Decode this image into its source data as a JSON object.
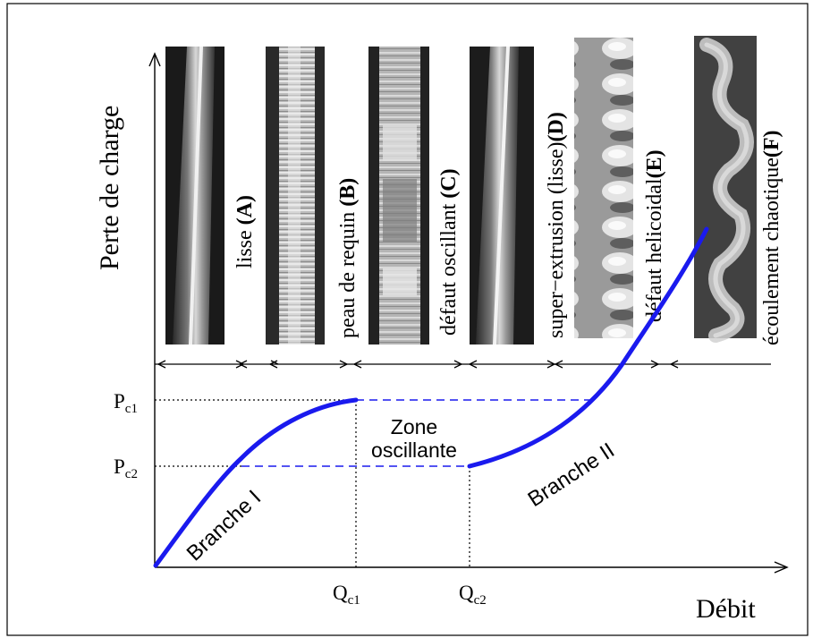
{
  "axes": {
    "y_label": "Perte de charge",
    "x_label": "Débit"
  },
  "ticks": {
    "pc1": {
      "main": "P",
      "sub": "c1"
    },
    "pc2": {
      "main": "P",
      "sub": "c2"
    },
    "qc1": {
      "main": "Q",
      "sub": "c1"
    },
    "qc2": {
      "main": "Q",
      "sub": "c2"
    }
  },
  "zone_label": {
    "line1": "Zone",
    "line2": "oscillante"
  },
  "branch_labels": {
    "branch1": "Branche I",
    "branch2": "Branche II"
  },
  "regimes": [
    {
      "text": "lisse ",
      "letter": "(A)"
    },
    {
      "text": "peau de requin ",
      "letter": "(B)"
    },
    {
      "text": "défaut oscillant ",
      "letter": "(C)"
    },
    {
      "text": "super−extrusion (lisse)",
      "letter": "(D)"
    },
    {
      "text": "défaut helicoidal",
      "letter": "(E)"
    },
    {
      "text": "écoulement chaotique",
      "letter": "(F)"
    }
  ],
  "colors": {
    "curve": "#1a1aee",
    "dashed": "#1a1aee",
    "axis": "#000000"
  }
}
